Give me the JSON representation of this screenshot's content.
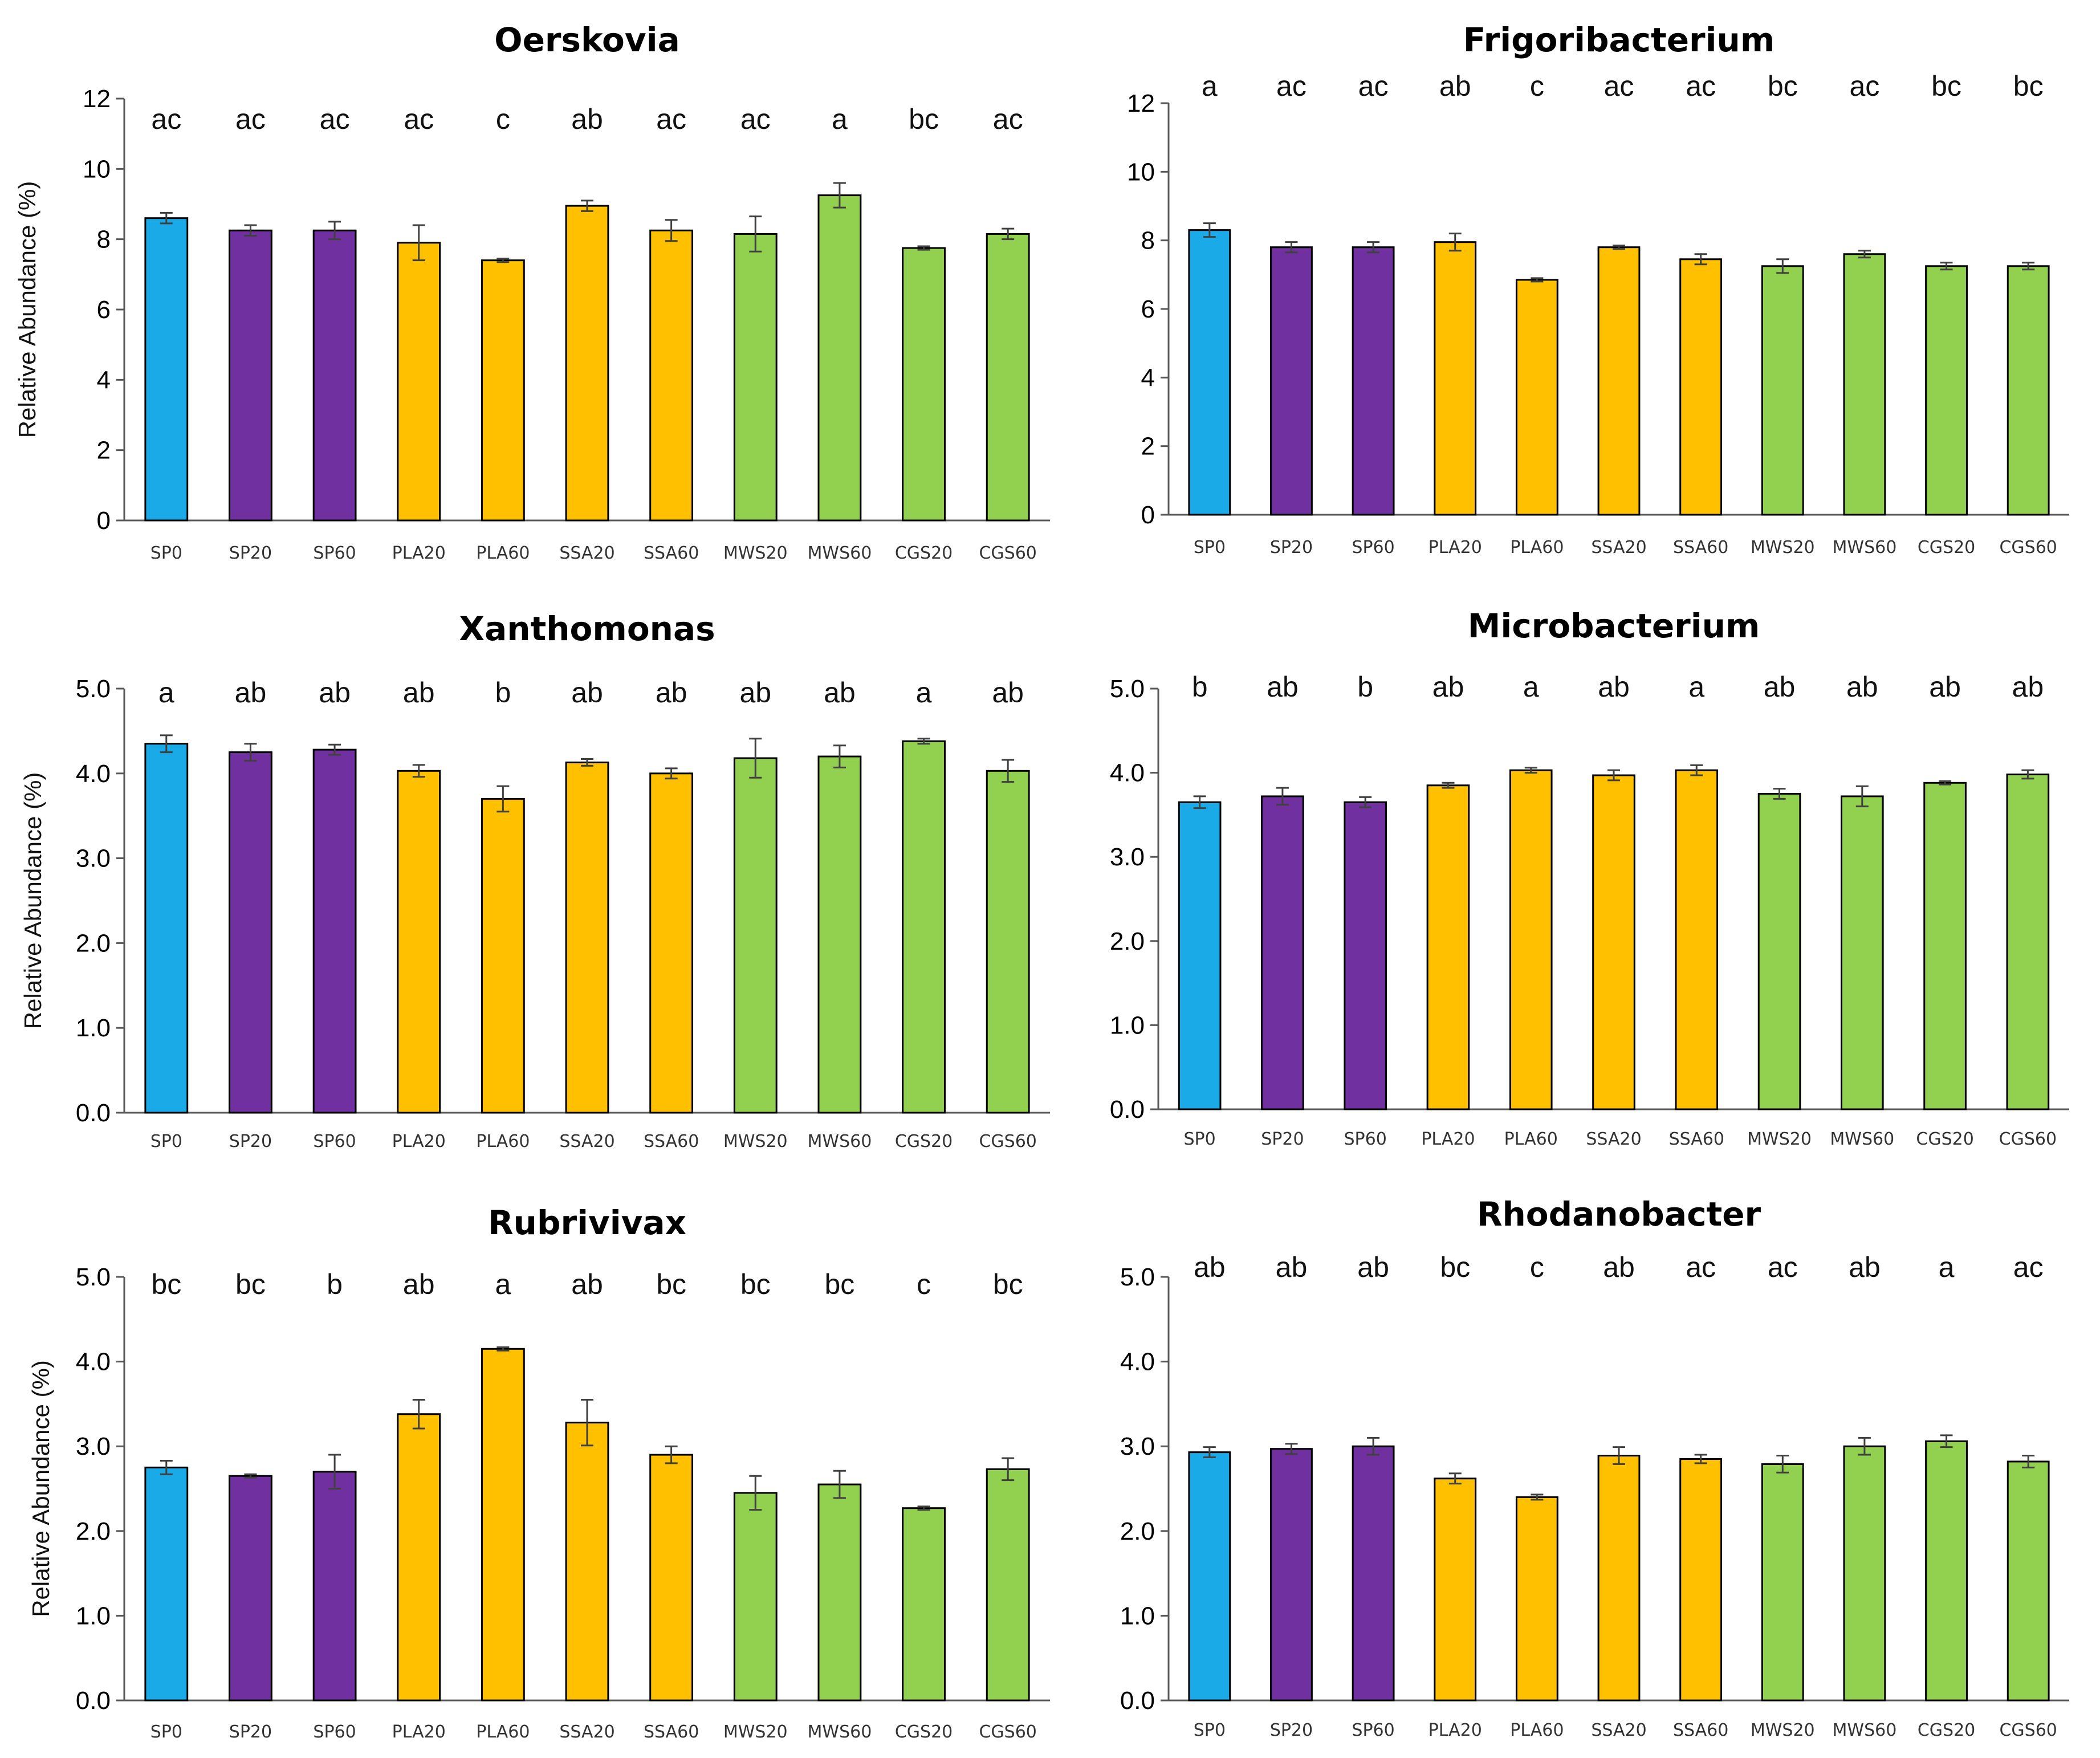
{
  "colors": {
    "SP": "#1aaae8",
    "Purple": "#7030a0",
    "Yellow": "#ffc000",
    "Green": "#92d050"
  },
  "chart_data": [
    {
      "type": "bar",
      "title": "Oerskovia",
      "ylabel": "Relative Abundance (%)",
      "ylim": [
        0,
        12
      ],
      "yticks": [
        "0",
        "2",
        "4",
        "6",
        "8",
        "10",
        "12"
      ],
      "categories": [
        "SP0",
        "SP20",
        "SP60",
        "PLA20",
        "PLA60",
        "SSA20",
        "SSA60",
        "MWS20",
        "MWS60",
        "CGS20",
        "CGS60"
      ],
      "values": [
        8.6,
        8.25,
        8.25,
        7.9,
        7.4,
        8.95,
        8.25,
        8.15,
        9.25,
        7.75,
        8.15
      ],
      "errors": [
        0.15,
        0.15,
        0.25,
        0.5,
        0.05,
        0.15,
        0.3,
        0.5,
        0.35,
        0.05,
        0.15
      ],
      "letters": [
        "ac",
        "ac",
        "ac",
        "ac",
        "c",
        "ab",
        "ac",
        "ac",
        "a",
        "bc",
        "ac"
      ]
    },
    {
      "type": "bar",
      "title": "Frigoribacterium",
      "ylabel": "",
      "ylim": [
        0,
        12
      ],
      "yticks": [
        "0",
        "2",
        "4",
        "6",
        "8",
        "10",
        "12"
      ],
      "categories": [
        "SP0",
        "SP20",
        "SP60",
        "PLA20",
        "PLA60",
        "SSA20",
        "SSA60",
        "MWS20",
        "MWS60",
        "CGS20",
        "CGS60"
      ],
      "values": [
        8.3,
        7.8,
        7.8,
        7.95,
        6.85,
        7.8,
        7.45,
        7.25,
        7.6,
        7.25,
        7.25
      ],
      "errors": [
        0.2,
        0.15,
        0.15,
        0.25,
        0.05,
        0.05,
        0.15,
        0.2,
        0.1,
        0.1,
        0.1
      ],
      "letters": [
        "a",
        "ac",
        "ac",
        "ab",
        "c",
        "ac",
        "ac",
        "bc",
        "ac",
        "bc",
        "bc"
      ]
    },
    {
      "type": "bar",
      "title": "Xanthomonas",
      "ylabel": "Relative Abundance (%)",
      "ylim": [
        0,
        5
      ],
      "yticks": [
        "0.0",
        "1.0",
        "2.0",
        "3.0",
        "4.0",
        "5.0"
      ],
      "categories": [
        "SP0",
        "SP20",
        "SP60",
        "PLA20",
        "PLA60",
        "SSA20",
        "SSA60",
        "MWS20",
        "MWS60",
        "CGS20",
        "CGS60"
      ],
      "values": [
        4.35,
        4.25,
        4.28,
        4.03,
        3.7,
        4.13,
        4.0,
        4.18,
        4.2,
        4.38,
        4.03
      ],
      "errors": [
        0.1,
        0.1,
        0.06,
        0.07,
        0.15,
        0.04,
        0.06,
        0.23,
        0.13,
        0.03,
        0.13
      ],
      "letters": [
        "a",
        "ab",
        "ab",
        "ab",
        "b",
        "ab",
        "ab",
        "ab",
        "ab",
        "a",
        "ab"
      ]
    },
    {
      "type": "bar",
      "title": "Microbacterium",
      "ylabel": "",
      "ylim": [
        0,
        5
      ],
      "yticks": [
        "0.0",
        "1.0",
        "2.0",
        "3.0",
        "4.0",
        "5.0"
      ],
      "categories": [
        "SP0",
        "SP20",
        "SP60",
        "PLA20",
        "PLA60",
        "SSA20",
        "SSA60",
        "MWS20",
        "MWS60",
        "CGS20",
        "CGS60"
      ],
      "values": [
        3.65,
        3.72,
        3.65,
        3.85,
        4.03,
        3.97,
        4.03,
        3.75,
        3.72,
        3.88,
        3.98
      ],
      "errors": [
        0.07,
        0.1,
        0.06,
        0.03,
        0.03,
        0.06,
        0.06,
        0.06,
        0.12,
        0.02,
        0.05
      ],
      "letters": [
        "b",
        "ab",
        "b",
        "ab",
        "a",
        "ab",
        "a",
        "ab",
        "ab",
        "ab",
        "ab"
      ]
    },
    {
      "type": "bar",
      "title": "Rubrivivax",
      "ylabel": "Relative Abundance (%)",
      "ylim": [
        0,
        5
      ],
      "yticks": [
        "0.0",
        "1.0",
        "2.0",
        "3.0",
        "4.0",
        "5.0"
      ],
      "categories": [
        "SP0",
        "SP20",
        "SP60",
        "PLA20",
        "PLA60",
        "SSA20",
        "SSA60",
        "MWS20",
        "MWS60",
        "CGS20",
        "CGS60"
      ],
      "values": [
        2.75,
        2.65,
        2.7,
        3.38,
        4.15,
        3.28,
        2.9,
        2.45,
        2.55,
        2.27,
        2.73
      ],
      "errors": [
        0.08,
        0.02,
        0.2,
        0.17,
        0.02,
        0.27,
        0.1,
        0.2,
        0.16,
        0.02,
        0.13
      ],
      "letters": [
        "bc",
        "bc",
        "b",
        "ab",
        "a",
        "ab",
        "bc",
        "bc",
        "bc",
        "c",
        "bc"
      ]
    },
    {
      "type": "bar",
      "title": "Rhodanobacter",
      "ylabel": "",
      "ylim": [
        0,
        5
      ],
      "yticks": [
        "0.0",
        "1.0",
        "2.0",
        "3.0",
        "4.0",
        "5.0"
      ],
      "categories": [
        "SP0",
        "SP20",
        "SP60",
        "PLA20",
        "PLA60",
        "SSA20",
        "SSA60",
        "MWS20",
        "MWS60",
        "CGS20",
        "CGS60"
      ],
      "values": [
        2.93,
        2.97,
        3.0,
        2.62,
        2.4,
        2.89,
        2.85,
        2.79,
        3.0,
        3.06,
        2.82
      ],
      "errors": [
        0.06,
        0.06,
        0.1,
        0.06,
        0.03,
        0.1,
        0.05,
        0.1,
        0.1,
        0.07,
        0.07
      ],
      "letters": [
        "ab",
        "ab",
        "ab",
        "bc",
        "c",
        "ab",
        "ac",
        "ac",
        "ab",
        "a",
        "ac"
      ]
    }
  ]
}
